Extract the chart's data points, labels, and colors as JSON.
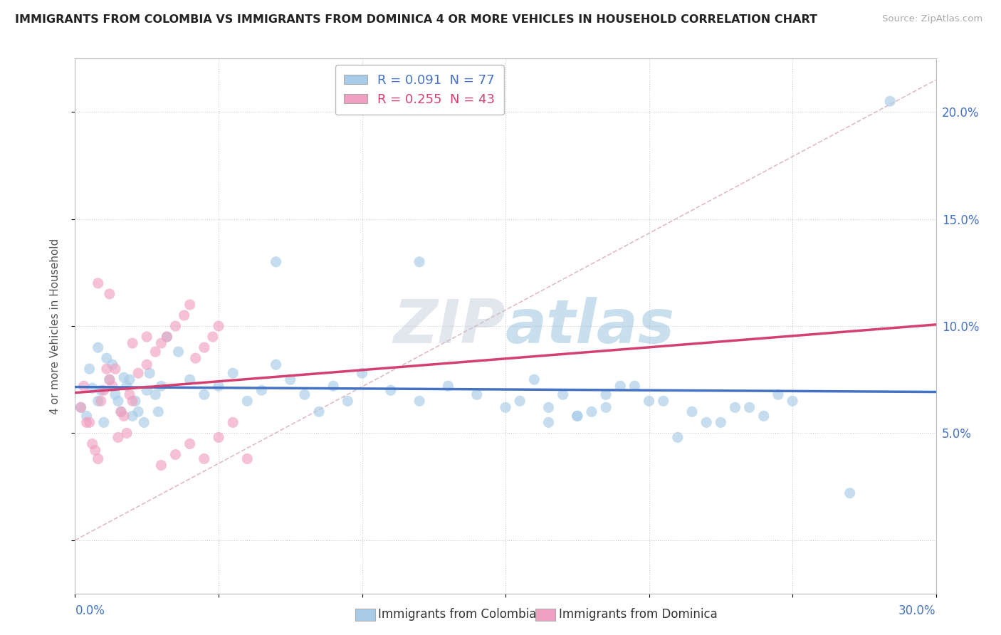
{
  "title": "IMMIGRANTS FROM COLOMBIA VS IMMIGRANTS FROM DOMINICA 4 OR MORE VEHICLES IN HOUSEHOLD CORRELATION CHART",
  "source": "Source: ZipAtlas.com",
  "ylabel": "4 or more Vehicles in Household",
  "y_tick_labels": [
    "",
    "5.0%",
    "10.0%",
    "15.0%",
    "20.0%"
  ],
  "x_min": 0.0,
  "x_max": 0.3,
  "y_min": -0.025,
  "y_max": 0.225,
  "colombia_color": "#a8cce8",
  "dominica_color": "#f0a0c0",
  "colombia_line_color": "#4472c4",
  "dominica_line_color": "#d44070",
  "diagonal_color": "#ccaaaa",
  "R_colombia": 0.091,
  "N_colombia": 77,
  "R_dominica": 0.255,
  "N_dominica": 43,
  "legend_label_colombia": "Immigrants from Colombia",
  "legend_label_dominica": "Immigrants from Dominica",
  "watermark": "ZIPatlas",
  "seed": 42
}
